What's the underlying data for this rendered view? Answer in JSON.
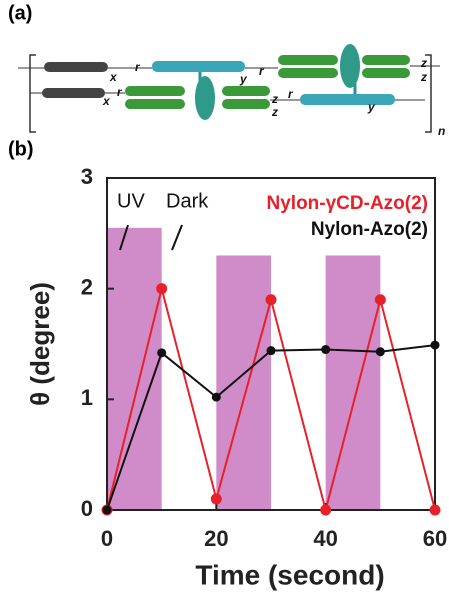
{
  "panel_labels": [
    "(a)",
    "(b)"
  ],
  "diagram": {
    "labels": [
      "x",
      "r",
      "y",
      "r",
      "z",
      "z",
      "x",
      "r",
      "z",
      "z",
      "r",
      "y",
      "n"
    ]
  },
  "chart_data": {
    "type": "line",
    "xlabel": "Time (second)",
    "ylabel": "θ (degree)",
    "x": [
      0,
      10,
      20,
      30,
      40,
      50,
      60
    ],
    "series": [
      {
        "name": "Nylon-γCD-Azo(2)",
        "color": "#e8202a",
        "values": [
          0,
          2.0,
          0.1,
          1.9,
          0,
          1.9,
          0
        ]
      },
      {
        "name": "Nylon-Azo(2)",
        "color": "#111111",
        "values": [
          0,
          1.42,
          1.02,
          1.44,
          1.45,
          1.43,
          1.49
        ]
      }
    ],
    "uv_bands": {
      "color": "#d08cc8",
      "bands": [
        {
          "x": [
            0,
            10
          ],
          "height": 2.55
        },
        {
          "x": [
            20,
            30
          ],
          "height": 2.3
        },
        {
          "x": [
            40,
            50
          ],
          "height": 2.3
        }
      ]
    },
    "annotations": [
      "UV",
      "Dark"
    ],
    "xlim": [
      0,
      60
    ],
    "xticks": [
      0,
      20,
      40,
      60
    ],
    "ylim": [
      0,
      3
    ],
    "yticks": [
      0,
      1,
      2,
      3
    ]
  }
}
